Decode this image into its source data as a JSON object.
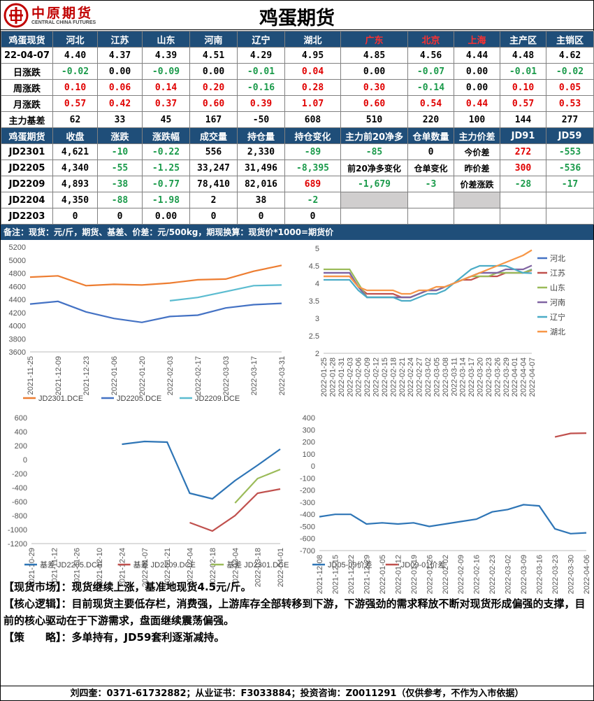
{
  "header": {
    "logo_cn": "中原期货",
    "logo_en": "CENTRAL CHINA FUTURES",
    "title": "鸡蛋期货"
  },
  "spot": {
    "head": [
      "鸡蛋现货",
      "河北",
      "江苏",
      "山东",
      "河南",
      "辽宁",
      "湖北",
      "广东",
      "北京",
      "上海",
      "主产区",
      "主销区"
    ],
    "rows": [
      {
        "label": "22-04-07",
        "cells": [
          {
            "v": "4.40"
          },
          {
            "v": "4.37"
          },
          {
            "v": "4.39"
          },
          {
            "v": "4.51"
          },
          {
            "v": "4.29"
          },
          {
            "v": "4.95"
          },
          {
            "v": "4.85"
          },
          {
            "v": "4.56"
          },
          {
            "v": "4.44"
          },
          {
            "v": "4.48"
          },
          {
            "v": "4.62"
          }
        ]
      },
      {
        "label": "日涨跌",
        "cells": [
          {
            "v": "-0.02",
            "c": "gr"
          },
          {
            "v": "0.00"
          },
          {
            "v": "-0.09",
            "c": "gr"
          },
          {
            "v": "0.00"
          },
          {
            "v": "-0.01",
            "c": "gr"
          },
          {
            "v": "0.04",
            "c": "r"
          },
          {
            "v": "0.00"
          },
          {
            "v": "-0.07",
            "c": "gr"
          },
          {
            "v": "0.00"
          },
          {
            "v": "-0.01",
            "c": "gr"
          },
          {
            "v": "-0.02",
            "c": "gr"
          }
        ]
      },
      {
        "label": "周涨跌",
        "cells": [
          {
            "v": "0.10",
            "c": "r"
          },
          {
            "v": "0.06",
            "c": "r"
          },
          {
            "v": "0.14",
            "c": "r"
          },
          {
            "v": "0.20",
            "c": "r"
          },
          {
            "v": "-0.16",
            "c": "gr"
          },
          {
            "v": "0.28",
            "c": "r"
          },
          {
            "v": "0.30",
            "c": "r"
          },
          {
            "v": "-0.14",
            "c": "gr"
          },
          {
            "v": "0.00"
          },
          {
            "v": "0.10",
            "c": "r"
          },
          {
            "v": "0.05",
            "c": "r"
          }
        ]
      },
      {
        "label": "月涨跌",
        "cells": [
          {
            "v": "0.57",
            "c": "r"
          },
          {
            "v": "0.42",
            "c": "r"
          },
          {
            "v": "0.37",
            "c": "r"
          },
          {
            "v": "0.60",
            "c": "r"
          },
          {
            "v": "0.39",
            "c": "r"
          },
          {
            "v": "1.07",
            "c": "r"
          },
          {
            "v": "0.60",
            "c": "r"
          },
          {
            "v": "0.54",
            "c": "r"
          },
          {
            "v": "0.44",
            "c": "r"
          },
          {
            "v": "0.57",
            "c": "r"
          },
          {
            "v": "0.53",
            "c": "r"
          }
        ]
      },
      {
        "label": "主力基差",
        "cells": [
          {
            "v": "62"
          },
          {
            "v": "33"
          },
          {
            "v": "45"
          },
          {
            "v": "167"
          },
          {
            "v": "-50"
          },
          {
            "v": "608"
          },
          {
            "v": "510"
          },
          {
            "v": "220"
          },
          {
            "v": "100"
          },
          {
            "v": "144"
          },
          {
            "v": "277"
          }
        ]
      }
    ]
  },
  "futures": {
    "head": [
      "鸡蛋期货",
      "收盘",
      "涨跌",
      "涨跌幅",
      "成交量",
      "持仓量",
      "持仓变化",
      "主力前20净多",
      "仓单数量",
      "主力价差",
      "JD91",
      "JD59"
    ],
    "rows": [
      {
        "label": "JD2301",
        "cells": [
          {
            "v": "4,621"
          },
          {
            "v": "-10",
            "c": "gr"
          },
          {
            "v": "-0.22",
            "c": "gr"
          },
          {
            "v": "556"
          },
          {
            "v": "2,330"
          },
          {
            "v": "-89",
            "c": "gr"
          },
          {
            "v": "-85",
            "c": "gr"
          },
          {
            "v": "0"
          },
          {
            "v": "今价差",
            "c": "lb"
          },
          {
            "v": "272",
            "c": "r"
          },
          {
            "v": "-553",
            "c": "gr"
          }
        ]
      },
      {
        "label": "JD2205",
        "cells": [
          {
            "v": "4,340"
          },
          {
            "v": "-55",
            "c": "gr"
          },
          {
            "v": "-1.25",
            "c": "gr"
          },
          {
            "v": "33,247"
          },
          {
            "v": "31,496"
          },
          {
            "v": "-8,395",
            "c": "gr"
          },
          {
            "v": "前20净多变化",
            "c": "lb"
          },
          {
            "v": "仓单变化",
            "c": "lb"
          },
          {
            "v": "昨价差",
            "c": "lb"
          },
          {
            "v": "300",
            "c": "r"
          },
          {
            "v": "-536",
            "c": "gr"
          }
        ]
      },
      {
        "label": "JD2209",
        "cells": [
          {
            "v": "4,893"
          },
          {
            "v": "-38",
            "c": "gr"
          },
          {
            "v": "-0.77",
            "c": "gr"
          },
          {
            "v": "78,410"
          },
          {
            "v": "82,016"
          },
          {
            "v": "689",
            "c": "r"
          },
          {
            "v": "-1,679",
            "c": "gr"
          },
          {
            "v": "-3",
            "c": "gr"
          },
          {
            "v": "价差涨跌",
            "c": "lb"
          },
          {
            "v": "-28",
            "c": "gr"
          },
          {
            "v": "-17",
            "c": "gr"
          }
        ]
      },
      {
        "label": "JD2204",
        "cells": [
          {
            "v": "4,350"
          },
          {
            "v": "-88",
            "c": "gr"
          },
          {
            "v": "-1.98",
            "c": "gr"
          },
          {
            "v": "2"
          },
          {
            "v": "38"
          },
          {
            "v": "-2",
            "c": "gr"
          },
          {
            "v": "",
            "c": "g"
          },
          {
            "v": ""
          },
          {
            "v": "",
            "c": "g"
          },
          {
            "v": ""
          },
          {
            "v": ""
          }
        ]
      },
      {
        "label": "JD2203",
        "cells": [
          {
            "v": "0"
          },
          {
            "v": "0"
          },
          {
            "v": "0.00"
          },
          {
            "v": "0"
          },
          {
            "v": "0"
          },
          {
            "v": "0"
          },
          {
            "v": ""
          },
          {
            "v": ""
          },
          {
            "v": ""
          },
          {
            "v": ""
          },
          {
            "v": ""
          }
        ]
      }
    ]
  },
  "note": "备注：现货：元/斤，期货、基差、价差：元/500kg，期现换算：现货价*1000=期货价",
  "commentary": [
    {
      "label": "【现货市场】：",
      "text": "现货继续上涨，基准地现货4.5元/斤。"
    },
    {
      "label": "【核心逻辑】：",
      "text": "目前现货主要低存栏，消费强，上游库存全部转移到下游，下游强劲的需求释放不断对现货形成偏强的支撑，目前的核心驱动在于下游需求，盘面继续震荡偏强。"
    },
    {
      "label": "【策　　略】：",
      "text": "多单持有，JD59套利逐渐减持。"
    }
  ],
  "footer": "刘四奎：0371-61732882；从业证书：F3033884；投资咨询：Z0011291（仅供参考，不作为入市依据）",
  "chart_data": [
    {
      "type": "line",
      "ylim": [
        3600,
        5200
      ],
      "yticks": [
        3600,
        3800,
        4000,
        4200,
        4400,
        4600,
        4800,
        5000,
        5200
      ],
      "x": [
        "2021-11-25",
        "2021-12-09",
        "2021-12-23",
        "2022-01-06",
        "2022-01-20",
        "2022-02-03",
        "2022-02-17",
        "2022-03-03",
        "2022-03-17",
        "2022-03-31"
      ],
      "series": [
        {
          "name": "JD2301.DCE",
          "color": "#ed7d31",
          "values": [
            4740,
            4760,
            4610,
            4630,
            4620,
            4650,
            4700,
            4710,
            4830,
            4920
          ]
        },
        {
          "name": "JD2205.DCE",
          "color": "#4472c4",
          "values": [
            4330,
            4370,
            4210,
            4110,
            4050,
            4140,
            4160,
            4270,
            4320,
            4340
          ]
        },
        {
          "name": "JD2209.DCE",
          "color": "#5bbcd0",
          "values": [
            null,
            null,
            null,
            null,
            null,
            4380,
            4430,
            4520,
            4610,
            4620
          ]
        }
      ]
    },
    {
      "type": "line",
      "ylim": [
        2.0,
        5.0
      ],
      "yticks": [
        2.0,
        2.5,
        3.0,
        3.5,
        4.0,
        4.5,
        5.0
      ],
      "x": [
        "2022-01-25",
        "2022-01-28",
        "2022-01-31",
        "2022-02-03",
        "2022-02-06",
        "2022-02-09",
        "2022-02-12",
        "2022-02-15",
        "2022-02-18",
        "2022-02-21",
        "2022-02-24",
        "2022-02-27",
        "2022-03-02",
        "2022-03-05",
        "2022-03-08",
        "2022-03-11",
        "2022-03-14",
        "2022-03-17",
        "2022-03-20",
        "2022-03-23",
        "2022-03-26",
        "2022-03-29",
        "2022-04-01",
        "2022-04-04",
        "2022-04-07"
      ],
      "series": [
        {
          "name": "河北",
          "color": "#4472c4",
          "values": [
            4.3,
            4.3,
            4.3,
            4.3,
            3.9,
            3.6,
            3.6,
            3.6,
            3.6,
            3.6,
            3.6,
            3.7,
            3.8,
            3.8,
            3.9,
            4.0,
            4.1,
            4.2,
            4.3,
            4.3,
            4.3,
            4.3,
            4.3,
            4.3,
            4.4
          ]
        },
        {
          "name": "江苏",
          "color": "#c0504d",
          "values": [
            4.2,
            4.2,
            4.2,
            4.2,
            3.9,
            3.7,
            3.7,
            3.7,
            3.7,
            3.6,
            3.6,
            3.7,
            3.8,
            3.8,
            3.9,
            4.0,
            4.1,
            4.1,
            4.2,
            4.2,
            4.2,
            4.3,
            4.3,
            4.3,
            4.37
          ]
        },
        {
          "name": "山东",
          "color": "#9bbb59",
          "values": [
            4.4,
            4.4,
            4.4,
            4.4,
            4.0,
            3.6,
            3.6,
            3.6,
            3.6,
            3.6,
            3.6,
            3.7,
            3.8,
            3.8,
            3.9,
            4.0,
            4.1,
            4.2,
            4.2,
            4.2,
            4.3,
            4.3,
            4.3,
            4.3,
            4.39
          ]
        },
        {
          "name": "河南",
          "color": "#8064a2",
          "values": [
            4.3,
            4.3,
            4.3,
            4.3,
            3.9,
            3.6,
            3.6,
            3.6,
            3.6,
            3.6,
            3.6,
            3.7,
            3.8,
            3.8,
            3.9,
            4.0,
            4.1,
            4.2,
            4.3,
            4.3,
            4.3,
            4.4,
            4.4,
            4.4,
            4.51
          ]
        },
        {
          "name": "辽宁",
          "color": "#4bacc6",
          "values": [
            4.1,
            4.1,
            4.1,
            4.1,
            3.8,
            3.6,
            3.6,
            3.6,
            3.6,
            3.5,
            3.5,
            3.6,
            3.7,
            3.7,
            3.8,
            4.0,
            4.2,
            4.4,
            4.5,
            4.5,
            4.5,
            4.5,
            4.4,
            4.3,
            4.29
          ]
        },
        {
          "name": "湖北",
          "color": "#f79646",
          "values": [
            4.2,
            4.2,
            4.2,
            4.2,
            3.9,
            3.8,
            3.8,
            3.8,
            3.8,
            3.7,
            3.7,
            3.8,
            3.8,
            3.9,
            3.9,
            4.0,
            4.1,
            4.2,
            4.3,
            4.4,
            4.5,
            4.6,
            4.7,
            4.8,
            4.95
          ]
        }
      ]
    },
    {
      "type": "line",
      "ylim": [
        -1200,
        600
      ],
      "yticks": [
        -1200,
        -1000,
        -800,
        -600,
        -400,
        -200,
        0,
        200,
        400,
        600
      ],
      "x": [
        "2021-10-29",
        "2021-11-12",
        "2021-11-26",
        "2021-12-10",
        "2021-12-24",
        "2022-01-07",
        "2022-01-21",
        "2022-02-04",
        "2022-02-18",
        "2022-03-04",
        "2022-03-18",
        "2022-04-01"
      ],
      "series": [
        {
          "name": "基差 JD2205.DCE",
          "color": "#2e75b6",
          "values": [
            null,
            null,
            null,
            null,
            220,
            260,
            250,
            -480,
            -560,
            -300,
            -80,
            150
          ]
        },
        {
          "name": "基差 JD2209.DCE",
          "color": "#c0504d",
          "values": [
            null,
            null,
            null,
            null,
            null,
            null,
            null,
            -900,
            -1020,
            -800,
            -480,
            -420
          ]
        },
        {
          "name": "基差 JD2301.DCE",
          "color": "#9bbb59",
          "values": [
            null,
            null,
            null,
            null,
            null,
            null,
            null,
            null,
            null,
            -620,
            -270,
            -140
          ]
        }
      ]
    },
    {
      "type": "line",
      "ylim": [
        -700,
        400
      ],
      "yticks": [
        -700,
        -600,
        -500,
        -400,
        -300,
        -200,
        -100,
        0,
        100,
        200,
        300,
        400
      ],
      "x": [
        "2021-12-08",
        "2021-12-15",
        "2021-12-22",
        "2021-12-29",
        "2022-01-05",
        "2022-01-12",
        "2022-01-19",
        "2022-01-26",
        "2022-02-02",
        "2022-02-09",
        "2022-02-16",
        "2022-02-23",
        "2022-03-02",
        "2022-03-09",
        "2022-03-16",
        "2022-03-23",
        "2022-03-30",
        "2022-04-06"
      ],
      "series": [
        {
          "name": "JD05-09价差",
          "color": "#2e75b6",
          "values": [
            -420,
            -400,
            -400,
            -480,
            -470,
            -480,
            -470,
            -500,
            -480,
            -460,
            -440,
            -380,
            -360,
            -320,
            -330,
            -520,
            -560,
            -553
          ]
        },
        {
          "name": "JD09-01价差",
          "color": "#c0504d",
          "values": [
            null,
            null,
            null,
            null,
            null,
            null,
            null,
            null,
            null,
            null,
            null,
            null,
            null,
            null,
            null,
            240,
            270,
            272
          ]
        }
      ]
    }
  ]
}
